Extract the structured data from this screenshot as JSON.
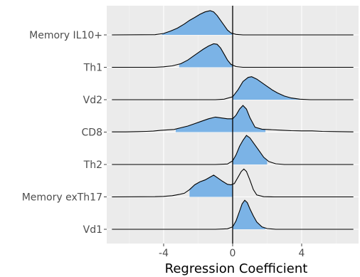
{
  "chart_data": {
    "type": "ridgeline",
    "title": "",
    "xlabel": "Regression Coefficient",
    "ylabel": "",
    "xlim": [
      -7.3,
      7.3
    ],
    "x_ticks": [
      -4,
      0,
      4
    ],
    "x_tick_labels": [
      "-4",
      "0",
      "4"
    ],
    "reference_line_x": 0,
    "fill_color": "#7bb3e6",
    "grid": true,
    "categories": [
      "Memory IL10+",
      "Th1",
      "Vd2",
      "CD8",
      "Th2",
      "Memory exTh17",
      "Vd1"
    ],
    "series": [
      {
        "label": "Memory IL10+",
        "fill_range": [
          -4.1,
          0
        ],
        "points": [
          [
            -7,
            0
          ],
          [
            -4.5,
            0.01
          ],
          [
            -4.0,
            0.06
          ],
          [
            -3.6,
            0.16
          ],
          [
            -3.2,
            0.28
          ],
          [
            -2.8,
            0.45
          ],
          [
            -2.5,
            0.6
          ],
          [
            -2.2,
            0.72
          ],
          [
            -1.9,
            0.85
          ],
          [
            -1.6,
            0.95
          ],
          [
            -1.3,
            1.0
          ],
          [
            -1.1,
            0.95
          ],
          [
            -0.9,
            0.8
          ],
          [
            -0.7,
            0.6
          ],
          [
            -0.5,
            0.4
          ],
          [
            -0.3,
            0.2
          ],
          [
            -0.1,
            0.08
          ],
          [
            0.2,
            0.02
          ],
          [
            0.6,
            0
          ],
          [
            7,
            0
          ]
        ]
      },
      {
        "label": "Th1",
        "fill_range": [
          -3.1,
          0
        ],
        "points": [
          [
            -7,
            0
          ],
          [
            -4.5,
            0
          ],
          [
            -4.0,
            0.02
          ],
          [
            -3.5,
            0.06
          ],
          [
            -3.0,
            0.15
          ],
          [
            -2.6,
            0.3
          ],
          [
            -2.3,
            0.45
          ],
          [
            -2.0,
            0.6
          ],
          [
            -1.7,
            0.75
          ],
          [
            -1.4,
            0.88
          ],
          [
            -1.1,
            0.97
          ],
          [
            -0.9,
            0.95
          ],
          [
            -0.7,
            0.8
          ],
          [
            -0.5,
            0.55
          ],
          [
            -0.3,
            0.3
          ],
          [
            -0.1,
            0.12
          ],
          [
            0.2,
            0.03
          ],
          [
            0.6,
            0
          ],
          [
            7,
            0
          ]
        ]
      },
      {
        "label": "Vd2",
        "fill_range": [
          0,
          3.9
        ],
        "points": [
          [
            -7,
            0
          ],
          [
            -1.0,
            0
          ],
          [
            -0.5,
            0.02
          ],
          [
            0,
            0.12
          ],
          [
            0.3,
            0.4
          ],
          [
            0.6,
            0.75
          ],
          [
            0.9,
            0.92
          ],
          [
            1.1,
            0.95
          ],
          [
            1.4,
            0.85
          ],
          [
            1.7,
            0.7
          ],
          [
            2.0,
            0.55
          ],
          [
            2.3,
            0.4
          ],
          [
            2.6,
            0.28
          ],
          [
            3.0,
            0.15
          ],
          [
            3.4,
            0.07
          ],
          [
            3.9,
            0.02
          ],
          [
            4.5,
            0
          ],
          [
            7,
            0
          ]
        ]
      },
      {
        "label": "CD8",
        "fill_range": [
          -3.3,
          1.9
        ],
        "points": [
          [
            -7,
            0.01
          ],
          [
            -6.2,
            0.01
          ],
          [
            -5.5,
            0.02
          ],
          [
            -5.0,
            0.03
          ],
          [
            -4.6,
            0.04
          ],
          [
            -4.2,
            0.07
          ],
          [
            -3.8,
            0.09
          ],
          [
            -3.4,
            0.11
          ],
          [
            -3.0,
            0.18
          ],
          [
            -2.6,
            0.25
          ],
          [
            -2.2,
            0.35
          ],
          [
            -1.8,
            0.45
          ],
          [
            -1.4,
            0.55
          ],
          [
            -1.0,
            0.62
          ],
          [
            -0.6,
            0.58
          ],
          [
            -0.3,
            0.55
          ],
          [
            0,
            0.55
          ],
          [
            0.2,
            0.7
          ],
          [
            0.4,
            0.95
          ],
          [
            0.6,
            1.1
          ],
          [
            0.8,
            0.95
          ],
          [
            1.0,
            0.6
          ],
          [
            1.3,
            0.2
          ],
          [
            1.7,
            0.12
          ],
          [
            2.2,
            0.1
          ],
          [
            2.8,
            0.08
          ],
          [
            3.4,
            0.06
          ],
          [
            4.0,
            0.05
          ],
          [
            4.6,
            0.05
          ],
          [
            5.2,
            0.03
          ],
          [
            6.0,
            0.02
          ],
          [
            7,
            0.01
          ]
        ]
      },
      {
        "label": "Th2",
        "fill_range": [
          0,
          2.0
        ],
        "points": [
          [
            -7,
            0
          ],
          [
            -1.0,
            0
          ],
          [
            -0.3,
            0.02
          ],
          [
            0,
            0.15
          ],
          [
            0.2,
            0.4
          ],
          [
            0.4,
            0.75
          ],
          [
            0.6,
            1.0
          ],
          [
            0.8,
            1.2
          ],
          [
            1.0,
            1.1
          ],
          [
            1.2,
            0.9
          ],
          [
            1.5,
            0.6
          ],
          [
            1.8,
            0.3
          ],
          [
            2.1,
            0.12
          ],
          [
            2.5,
            0.03
          ],
          [
            3.0,
            0
          ],
          [
            7,
            0
          ]
        ]
      },
      {
        "label": "Memory exTh17",
        "fill_range": [
          -2.5,
          0
        ],
        "points": [
          [
            -7,
            0
          ],
          [
            -4.5,
            0.01
          ],
          [
            -4.0,
            0.02
          ],
          [
            -3.5,
            0.05
          ],
          [
            -3.1,
            0.1
          ],
          [
            -2.8,
            0.15
          ],
          [
            -2.5,
            0.3
          ],
          [
            -2.2,
            0.5
          ],
          [
            -1.9,
            0.62
          ],
          [
            -1.6,
            0.7
          ],
          [
            -1.3,
            0.82
          ],
          [
            -1.1,
            0.9
          ],
          [
            -0.9,
            0.8
          ],
          [
            -0.6,
            0.65
          ],
          [
            -0.3,
            0.52
          ],
          [
            -0.1,
            0.5
          ],
          [
            0.1,
            0.55
          ],
          [
            0.3,
            0.8
          ],
          [
            0.5,
            1.05
          ],
          [
            0.65,
            1.15
          ],
          [
            0.8,
            1.05
          ],
          [
            1.0,
            0.7
          ],
          [
            1.2,
            0.3
          ],
          [
            1.4,
            0.08
          ],
          [
            1.8,
            0.01
          ],
          [
            2.4,
            0
          ],
          [
            7,
            0
          ]
        ]
      },
      {
        "label": "Vd1",
        "fill_range": [
          0,
          1.9
        ],
        "points": [
          [
            -7,
            0
          ],
          [
            -1.0,
            0
          ],
          [
            -0.3,
            0.02
          ],
          [
            0,
            0.1
          ],
          [
            0.2,
            0.35
          ],
          [
            0.4,
            0.75
          ],
          [
            0.55,
            1.05
          ],
          [
            0.7,
            1.2
          ],
          [
            0.85,
            1.1
          ],
          [
            1.0,
            0.85
          ],
          [
            1.2,
            0.55
          ],
          [
            1.4,
            0.3
          ],
          [
            1.7,
            0.1
          ],
          [
            2.0,
            0.03
          ],
          [
            2.5,
            0
          ],
          [
            7,
            0
          ]
        ]
      }
    ]
  }
}
